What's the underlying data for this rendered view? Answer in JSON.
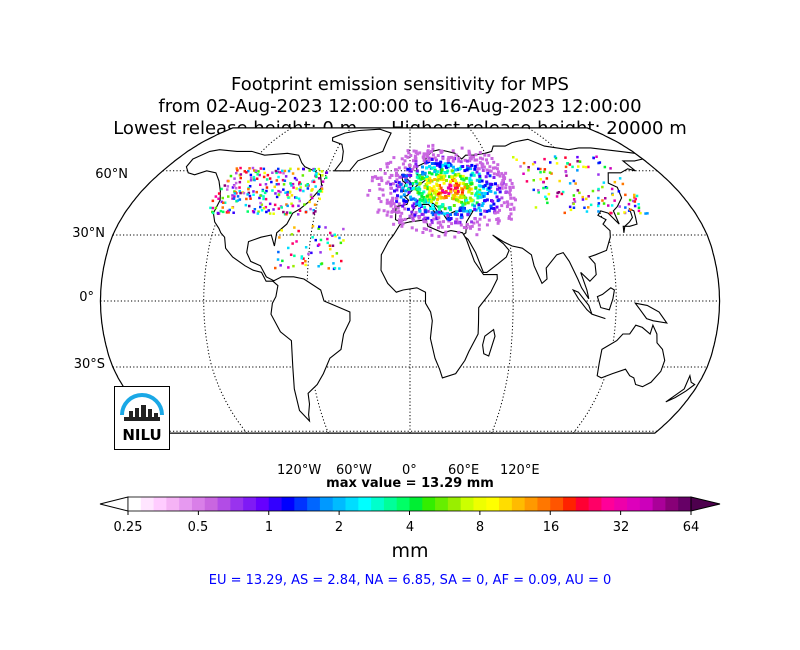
{
  "title": {
    "line1": "Footprint emission sensitivity for MPS",
    "line2": "from 02-Aug-2023 12:00:00 to 16-Aug-2023 12:00:00",
    "lowest": "Lowest release height: 0 m",
    "highest": "Highest release height: 20000 m"
  },
  "map": {
    "projection": "robinson",
    "lat_labels": [
      "60°N",
      "30°N",
      "0°",
      "30°S"
    ],
    "lon_labels": [
      "120°W",
      "60°W",
      "0°",
      "60°E",
      "120°E"
    ],
    "lat_lines": [
      -60,
      -30,
      0,
      30,
      60
    ],
    "lon_lines": [
      -120,
      -60,
      0,
      60,
      120
    ]
  },
  "plume": {
    "main_lon_range": [
      -40,
      70
    ],
    "main_lat_range": [
      28,
      78
    ],
    "core_lon": 25,
    "core_lat": 52
  },
  "max_value": "max value = 13.29 mm",
  "colorbar": {
    "unit": "mm",
    "scale": "log",
    "min": 0.25,
    "max": 64,
    "tick_labels": [
      "0.25",
      "0.5",
      "1",
      "2",
      "4",
      "8",
      "16",
      "32",
      "64"
    ],
    "colors": [
      "#ffffff",
      "#ffe5ff",
      "#ffccff",
      "#f5b3f5",
      "#e699f0",
      "#d97fe8",
      "#c966e0",
      "#b24ce6",
      "#9933ee",
      "#7f1af5",
      "#6600ff",
      "#3300ff",
      "#0000ff",
      "#0033ff",
      "#0066ff",
      "#0099ff",
      "#00bbff",
      "#00ddff",
      "#00ffff",
      "#00ffcc",
      "#00ff99",
      "#00ff66",
      "#00ee33",
      "#33ee00",
      "#66ee00",
      "#99ee00",
      "#ccff00",
      "#eeff00",
      "#ffff00",
      "#ffdd00",
      "#ffbb00",
      "#ff9900",
      "#ff7700",
      "#ff5500",
      "#ff2200",
      "#ff0033",
      "#ff0066",
      "#ff0099",
      "#ee00aa",
      "#dd00bb",
      "#cc00bb",
      "#aa0099",
      "#880077",
      "#660066"
    ]
  },
  "regions_text": "EU = 13.29,  AS = 2.84,  NA = 6.85,  SA = 0,  AF = 0.09,  AU = 0",
  "logo": {
    "text": "NILU",
    "colors": {
      "arc": "#1aa8e6",
      "bars": "#222222"
    }
  }
}
